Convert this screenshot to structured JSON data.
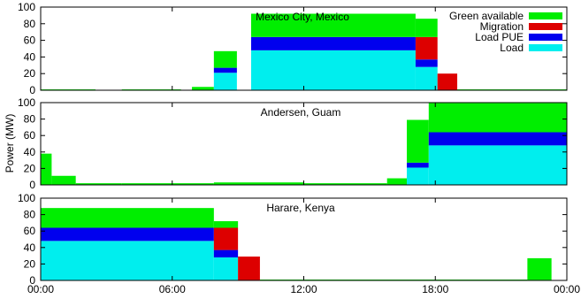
{
  "chart_data": [
    {
      "type": "bar",
      "title": "Mexico City, Mexico",
      "ylabel": "",
      "ylim": [
        0,
        100
      ],
      "yticks": [
        "0",
        "20",
        "40",
        "60",
        "80",
        "100"
      ],
      "show_xticks": false,
      "xlim_hours": [
        0,
        24
      ],
      "segments": [
        {
          "x": [
            0.0,
            2.5
          ],
          "load": 0,
          "pue": 0,
          "migration": 0,
          "green": 1
        },
        {
          "x": [
            3.7,
            6.4
          ],
          "load": 0,
          "pue": 0,
          "migration": 0,
          "green": 1
        },
        {
          "x": [
            6.9,
            7.9
          ],
          "load": 0,
          "pue": 0,
          "migration": 0,
          "green": 4
        },
        {
          "x": [
            7.9,
            8.95
          ],
          "load": 21,
          "pue": 6,
          "migration": 0,
          "green": 20
        },
        {
          "x": [
            8.95,
            9.6
          ],
          "load": 0,
          "pue": 0,
          "migration": 0,
          "green": 0
        },
        {
          "x": [
            9.6,
            17.1
          ],
          "load": 48,
          "pue": 16,
          "migration": 0,
          "green": 28
        },
        {
          "x": [
            17.1,
            18.1
          ],
          "load": 28,
          "pue": 9,
          "migration": 27,
          "green": 22
        },
        {
          "x": [
            18.1,
            19.0
          ],
          "load": 0,
          "pue": 0,
          "migration": 20,
          "green": 0
        },
        {
          "x": [
            19.0,
            24.0
          ],
          "load": 0,
          "pue": 0,
          "migration": 0,
          "green": 1
        }
      ]
    },
    {
      "type": "bar",
      "title": "Andersen, Guam",
      "ylabel": "Power (MW)",
      "ylim": [
        0,
        100
      ],
      "yticks": [
        "0",
        "20",
        "40",
        "60",
        "80",
        "100"
      ],
      "show_xticks": false,
      "xlim_hours": [
        0,
        24
      ],
      "segments": [
        {
          "x": [
            0.0,
            0.5
          ],
          "load": 0,
          "pue": 0,
          "migration": 0,
          "green": 38
        },
        {
          "x": [
            0.5,
            1.6
          ],
          "load": 0,
          "pue": 0,
          "migration": 0,
          "green": 11
        },
        {
          "x": [
            1.6,
            3.7
          ],
          "load": 0,
          "pue": 0,
          "migration": 0,
          "green": 2
        },
        {
          "x": [
            3.7,
            7.9
          ],
          "load": 0,
          "pue": 0,
          "migration": 0,
          "green": 2
        },
        {
          "x": [
            7.9,
            12.0
          ],
          "load": 0,
          "pue": 0,
          "migration": 0,
          "green": 3
        },
        {
          "x": [
            12.0,
            15.8
          ],
          "load": 0,
          "pue": 0,
          "migration": 0,
          "green": 2
        },
        {
          "x": [
            15.8,
            16.7
          ],
          "load": 0,
          "pue": 0,
          "migration": 0,
          "green": 8
        },
        {
          "x": [
            16.7,
            17.7
          ],
          "load": 21,
          "pue": 6,
          "migration": 0,
          "green": 52
        },
        {
          "x": [
            17.7,
            24.0
          ],
          "load": 48,
          "pue": 16,
          "migration": 0,
          "green": 36
        }
      ]
    },
    {
      "type": "bar",
      "title": "Harare, Kenya",
      "ylabel": "",
      "ylim": [
        0,
        100
      ],
      "yticks": [
        "0",
        "20",
        "40",
        "60",
        "80",
        "100"
      ],
      "show_xticks": true,
      "xticks": [
        "00:00",
        "06:00",
        "12:00",
        "18:00",
        "00:00"
      ],
      "xlim_hours": [
        0,
        24
      ],
      "segments": [
        {
          "x": [
            0.0,
            7.9
          ],
          "load": 48,
          "pue": 16,
          "migration": 0,
          "green": 24
        },
        {
          "x": [
            7.9,
            9.0
          ],
          "load": 28,
          "pue": 9,
          "migration": 27,
          "green": 8
        },
        {
          "x": [
            9.0,
            10.0
          ],
          "load": 0,
          "pue": 0,
          "migration": 29,
          "green": 0
        },
        {
          "x": [
            10.0,
            22.2
          ],
          "load": 0,
          "pue": 0,
          "migration": 0,
          "green": 1
        },
        {
          "x": [
            22.2,
            23.3
          ],
          "load": 0,
          "pue": 0,
          "migration": 0,
          "green": 27
        }
      ]
    }
  ],
  "legend": {
    "placement": "top-right",
    "entries": [
      {
        "label": "Green available",
        "color": "#00ee00"
      },
      {
        "label": "Migration",
        "color": "#dd0000"
      },
      {
        "label": "Load PUE",
        "color": "#0000ee"
      },
      {
        "label": "Load",
        "color": "#00eeee"
      }
    ]
  },
  "colors": {
    "load": "#00eeee",
    "pue": "#0000ee",
    "migration": "#dd0000",
    "green": "#00ee00"
  }
}
